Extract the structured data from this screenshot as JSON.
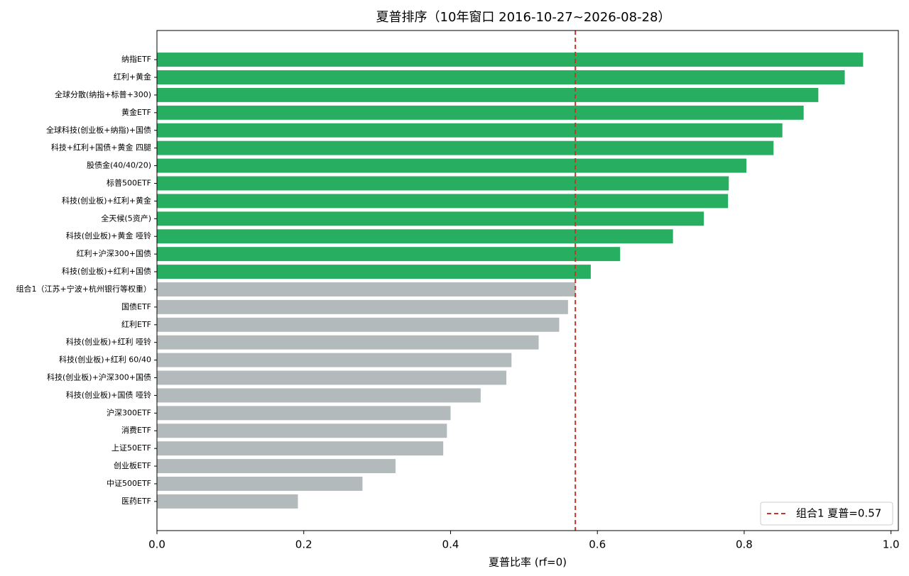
{
  "chart_data": {
    "type": "barh",
    "title": "夏普排序（10年窗口 2016-10-27~2026-08-28）",
    "x_label": "夏普比率 (rf=0)",
    "categories": [
      "纳指ETF",
      "红利+黄金",
      "全球分散(纳指+标普+300)",
      "黄金ETF",
      "全球科技(创业板+纳指)+国债",
      "科技+红利+国债+黄金 四腿",
      "股债金(40/40/20)",
      "标普500ETF",
      "科技(创业板)+红利+黄金",
      "全天候(5资产)",
      "科技(创业板)+黄金 哑铃",
      "红利+沪深300+国债",
      "科技(创业板)+红利+国债",
      "组合1（江苏+宁波+杭州银行等权重）",
      "国债ETF",
      "红利ETF",
      "科技(创业板)+红利 哑铃",
      "科技(创业板)+红利 60/40",
      "科技(创业板)+沪深300+国债",
      "科技(创业板)+国债 哑铃",
      "沪深300ETF",
      "消费ETF",
      "上证50ETF",
      "创业板ETF",
      "中证500ETF",
      "医药ETF"
    ],
    "values": [
      0.962,
      0.937,
      0.901,
      0.881,
      0.852,
      0.84,
      0.803,
      0.779,
      0.778,
      0.745,
      0.703,
      0.631,
      0.591,
      0.57,
      0.56,
      0.548,
      0.52,
      0.483,
      0.476,
      0.441,
      0.4,
      0.395,
      0.39,
      0.325,
      0.28,
      0.192
    ],
    "colors": [
      "#27ae60",
      "#27ae60",
      "#27ae60",
      "#27ae60",
      "#27ae60",
      "#27ae60",
      "#27ae60",
      "#27ae60",
      "#27ae60",
      "#27ae60",
      "#27ae60",
      "#27ae60",
      "#27ae60",
      "#b2babb",
      "#b2babb",
      "#b2babb",
      "#b2babb",
      "#b2babb",
      "#b2babb",
      "#b2babb",
      "#b2babb",
      "#b2babb",
      "#b2babb",
      "#b2babb",
      "#b2babb",
      "#b2babb"
    ],
    "xlim": [
      0,
      1.01
    ],
    "xticks": [
      {
        "value": 0,
        "label": "0.0"
      },
      0.2,
      0.4,
      0.6,
      0.8,
      {
        "value": 1,
        "label": "1.0"
      }
    ],
    "reference_line": {
      "value": 0.57,
      "label": "组合1 夏普=0.57",
      "color": "#c0392b",
      "style": "dashed"
    },
    "legend": "lower right"
  }
}
